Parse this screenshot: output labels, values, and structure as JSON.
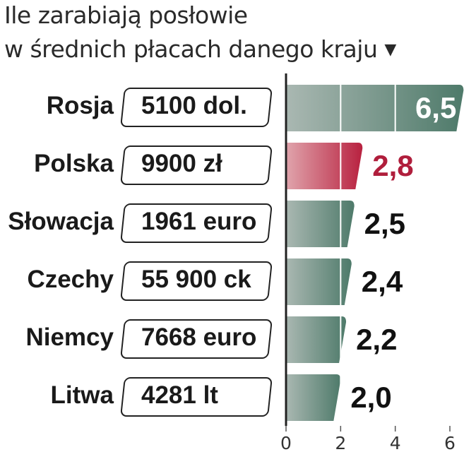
{
  "header": {
    "title_line1": "Ile zarabiają posłowie",
    "title_line2": "w średnich płacach danego kraju",
    "arrow_glyph": "▼"
  },
  "rows": [
    {
      "country": "Rosja",
      "salary": "5100 dol.",
      "value_label": "6,5"
    },
    {
      "country": "Polska",
      "salary": "9900 zł",
      "value_label": "2,8"
    },
    {
      "country": "Słowacja",
      "salary": "1961 euro",
      "value_label": "2,5"
    },
    {
      "country": "Czechy",
      "salary": "55 900 ck",
      "value_label": "2,4"
    },
    {
      "country": "Niemcy",
      "salary": "7668 euro",
      "value_label": "2,2"
    },
    {
      "country": "Litwa",
      "salary": "4281 lt",
      "value_label": "2,0"
    }
  ],
  "chart_data": {
    "type": "bar",
    "orientation": "horizontal",
    "title": "Ile zarabiają posłowie w średnich płacach danego kraju",
    "categories": [
      "Rosja",
      "Polska",
      "Słowacja",
      "Czechy",
      "Niemcy",
      "Litwa"
    ],
    "values": [
      6.5,
      2.8,
      2.5,
      2.4,
      2.2,
      2.0
    ],
    "value_labels": [
      "6,5",
      "2,8",
      "2,5",
      "2,4",
      "2,2",
      "2,0"
    ],
    "xlim": [
      0,
      6
    ],
    "x_ticks": [
      0,
      2,
      4,
      6
    ],
    "x_tick_labels": [
      "0",
      "2",
      "4",
      "6"
    ],
    "grid": true,
    "highlight_category": "Polska",
    "colors": {
      "bar": "#4e7a6a",
      "bar_light": "#aab8b2",
      "highlight": "#b8213f",
      "highlight_light": "#e0a4ac",
      "highlight_label": "#b01e3c"
    }
  }
}
